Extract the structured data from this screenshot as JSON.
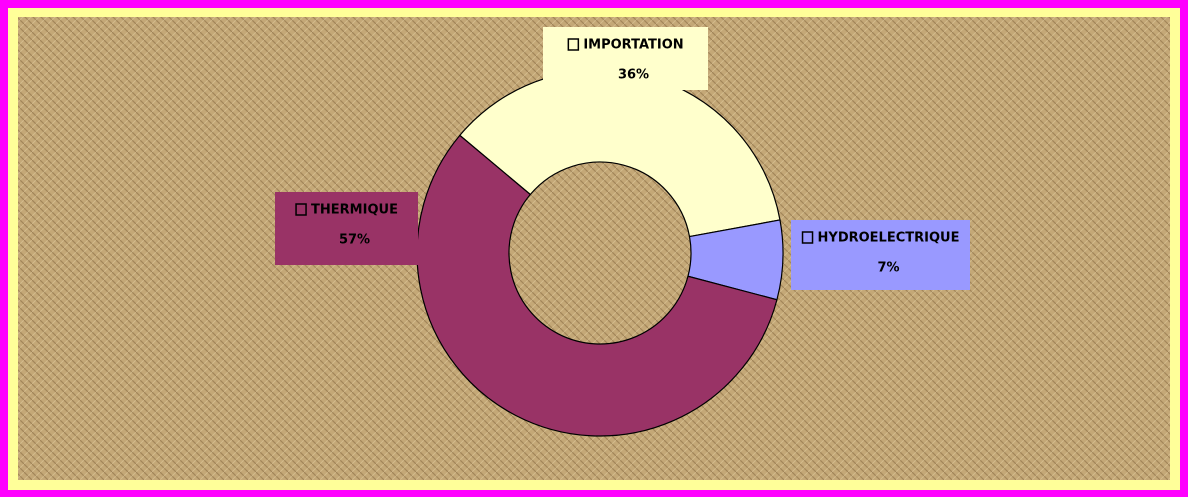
{
  "chart_data": {
    "type": "donut",
    "categories": [
      "IMPORTATION",
      "HYDROELECTRIQUE",
      "THERMIQUE"
    ],
    "values": [
      36,
      7,
      57
    ],
    "value_labels": [
      "36%",
      "7%",
      "57%"
    ],
    "colors": [
      "#ffffcc",
      "#9999ff",
      "#993366"
    ]
  }
}
